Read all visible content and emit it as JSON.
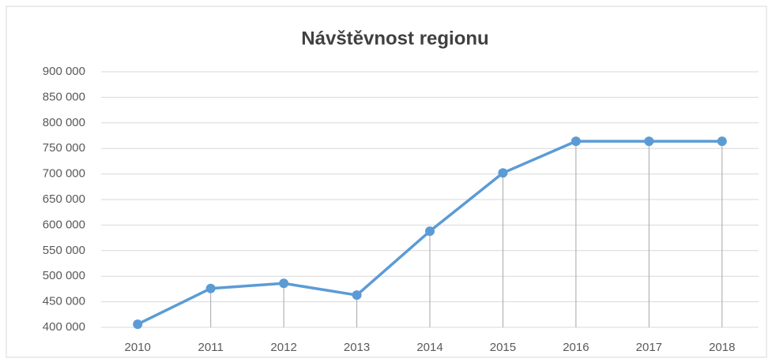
{
  "chart_data": {
    "type": "line",
    "title": "Návštěvnost regionu",
    "categories": [
      "2010",
      "2011",
      "2012",
      "2013",
      "2014",
      "2015",
      "2016",
      "2017",
      "2018"
    ],
    "values": [
      406000,
      476000,
      486000,
      463000,
      588000,
      702000,
      764000,
      764000,
      764000
    ],
    "color": "#5b9bd5",
    "drop_lines": true,
    "grid": true,
    "ylim": [
      400000,
      900000
    ],
    "yticks": [
      {
        "value": 400000,
        "label": "400 000"
      },
      {
        "value": 450000,
        "label": "450 000"
      },
      {
        "value": 500000,
        "label": "500 000"
      },
      {
        "value": 550000,
        "label": "550 000"
      },
      {
        "value": 600000,
        "label": "600 000"
      },
      {
        "value": 650000,
        "label": "650 000"
      },
      {
        "value": 700000,
        "label": "700 000"
      },
      {
        "value": 750000,
        "label": "750 000"
      },
      {
        "value": 800000,
        "label": "800 000"
      },
      {
        "value": 850000,
        "label": "850 000"
      },
      {
        "value": 900000,
        "label": "900 000"
      }
    ]
  }
}
